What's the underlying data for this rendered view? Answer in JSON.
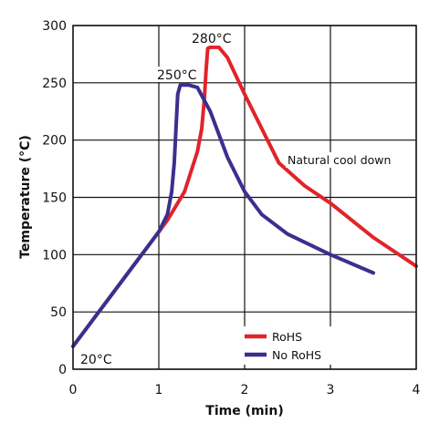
{
  "chart_data": {
    "type": "line",
    "xlabel": "Time (min)",
    "ylabel": "Temperature (°C)",
    "xlim": [
      0,
      4
    ],
    "ylim": [
      0,
      300
    ],
    "x_ticks": [
      "0",
      "1",
      "2",
      "3",
      "4"
    ],
    "y_ticks": [
      "0",
      "50",
      "100",
      "150",
      "200",
      "250",
      "300"
    ],
    "grid": true,
    "legend_position": "bottom-center",
    "series": [
      {
        "name": "RoHS",
        "color": "#e2232a",
        "x": [
          0,
          0.3,
          0.6,
          0.9,
          1.1,
          1.3,
          1.45,
          1.5,
          1.53,
          1.55,
          1.57,
          1.6,
          1.7,
          1.8,
          2.0,
          2.2,
          2.4,
          2.7,
          3.0,
          3.5,
          4.0
        ],
        "y": [
          20,
          50,
          80,
          110,
          130,
          155,
          190,
          210,
          235,
          260,
          280,
          281,
          281,
          272,
          240,
          210,
          180,
          160,
          145,
          115,
          90
        ]
      },
      {
        "name": "No RoHS",
        "color": "#3b2f8e",
        "x": [
          0,
          0.3,
          0.6,
          0.9,
          1.0,
          1.1,
          1.15,
          1.18,
          1.2,
          1.22,
          1.25,
          1.35,
          1.45,
          1.6,
          1.8,
          2.0,
          2.2,
          2.5,
          3.0,
          3.5
        ],
        "y": [
          20,
          50,
          80,
          110,
          120,
          135,
          155,
          180,
          210,
          240,
          248,
          248,
          246,
          225,
          185,
          155,
          135,
          118,
          100,
          84
        ]
      }
    ],
    "annotations": [
      "280°C",
      "250°C",
      "20°C",
      "Natural cool down"
    ]
  }
}
